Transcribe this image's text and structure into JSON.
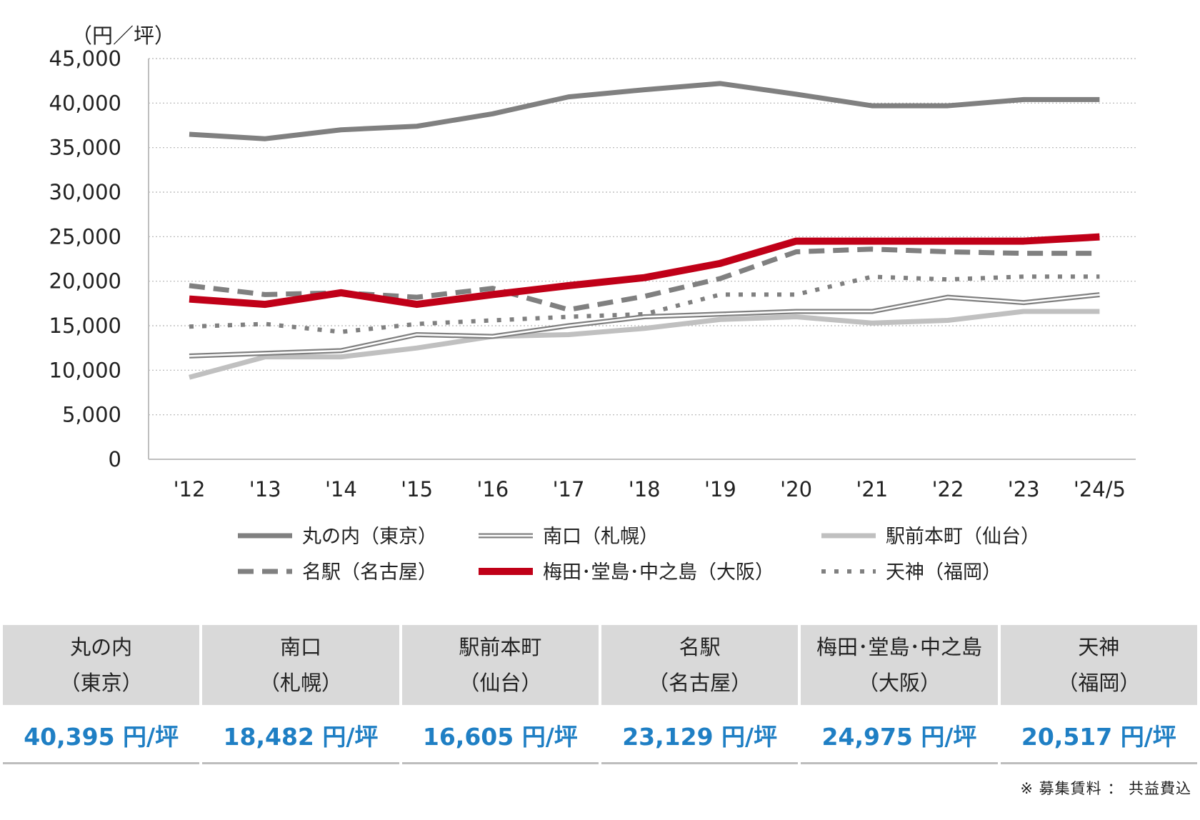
{
  "chart_data": {
    "type": "line",
    "unit_label": "（円／坪）",
    "x": [
      "'12",
      "'13",
      "'14",
      "'15",
      "'16",
      "'17",
      "'18",
      "'19",
      "'20",
      "'21",
      "'22",
      "'23",
      "'24/5"
    ],
    "ylim": [
      0,
      45000
    ],
    "yticks": [
      0,
      5000,
      10000,
      15000,
      20000,
      25000,
      30000,
      35000,
      40000,
      45000
    ],
    "ytick_labels": [
      "0",
      "5,000",
      "10,000",
      "15,000",
      "20,000",
      "25,000",
      "30,000",
      "35,000",
      "40,000",
      "45,000"
    ],
    "grid": "horizontal-dotted",
    "series": [
      {
        "name": "丸の内（東京）",
        "color": "#808080",
        "style": "solid-thick",
        "values": [
          36500,
          36000,
          37000,
          37400,
          38800,
          40700,
          41500,
          42200,
          41000,
          39700,
          39700,
          40395,
          40395
        ]
      },
      {
        "name": "南口（札幌）",
        "color": "#808080",
        "style": "double",
        "values": [
          11600,
          11900,
          12200,
          14000,
          13800,
          15000,
          16000,
          16300,
          16600,
          16600,
          18200,
          17600,
          18482
        ]
      },
      {
        "name": "駅前本町（仙台）",
        "color": "#c0c0c0",
        "style": "solid-thick",
        "values": [
          9200,
          11500,
          11500,
          12500,
          13800,
          14000,
          14700,
          15700,
          16000,
          15300,
          15600,
          16605,
          16605
        ]
      },
      {
        "name": "名駅（名古屋）",
        "color": "#808080",
        "style": "dashed",
        "values": [
          19500,
          18500,
          18700,
          18200,
          19200,
          16800,
          18300,
          20300,
          23300,
          23600,
          23300,
          23129,
          23129
        ]
      },
      {
        "name": "梅田･堂島･中之島（大阪）",
        "color": "#c00018",
        "style": "solid-thicker",
        "values": [
          18000,
          17400,
          18700,
          17400,
          18500,
          19500,
          20400,
          22000,
          24500,
          24500,
          24500,
          24500,
          24975
        ]
      },
      {
        "name": "天神（福岡）",
        "color": "#808080",
        "style": "dotted",
        "values": [
          14900,
          15200,
          14300,
          15200,
          15600,
          16000,
          16300,
          18500,
          18500,
          20500,
          20200,
          20517,
          20517
        ]
      }
    ]
  },
  "summary_table": [
    {
      "name": "丸の内",
      "region": "（東京）",
      "value": "40,395 円/坪"
    },
    {
      "name": "南口",
      "region": "（札幌）",
      "value": "18,482 円/坪"
    },
    {
      "name": "駅前本町",
      "region": "（仙台）",
      "value": "16,605 円/坪"
    },
    {
      "name": "名駅",
      "region": "（名古屋）",
      "value": "23,129 円/坪"
    },
    {
      "name": "梅田･堂島･中之島",
      "region": "（大阪）",
      "value": "24,975 円/坪"
    },
    {
      "name": "天神",
      "region": "（福岡）",
      "value": "20,517 円/坪"
    }
  ],
  "footnote": "※ 募集賃料 ： 共益費込"
}
